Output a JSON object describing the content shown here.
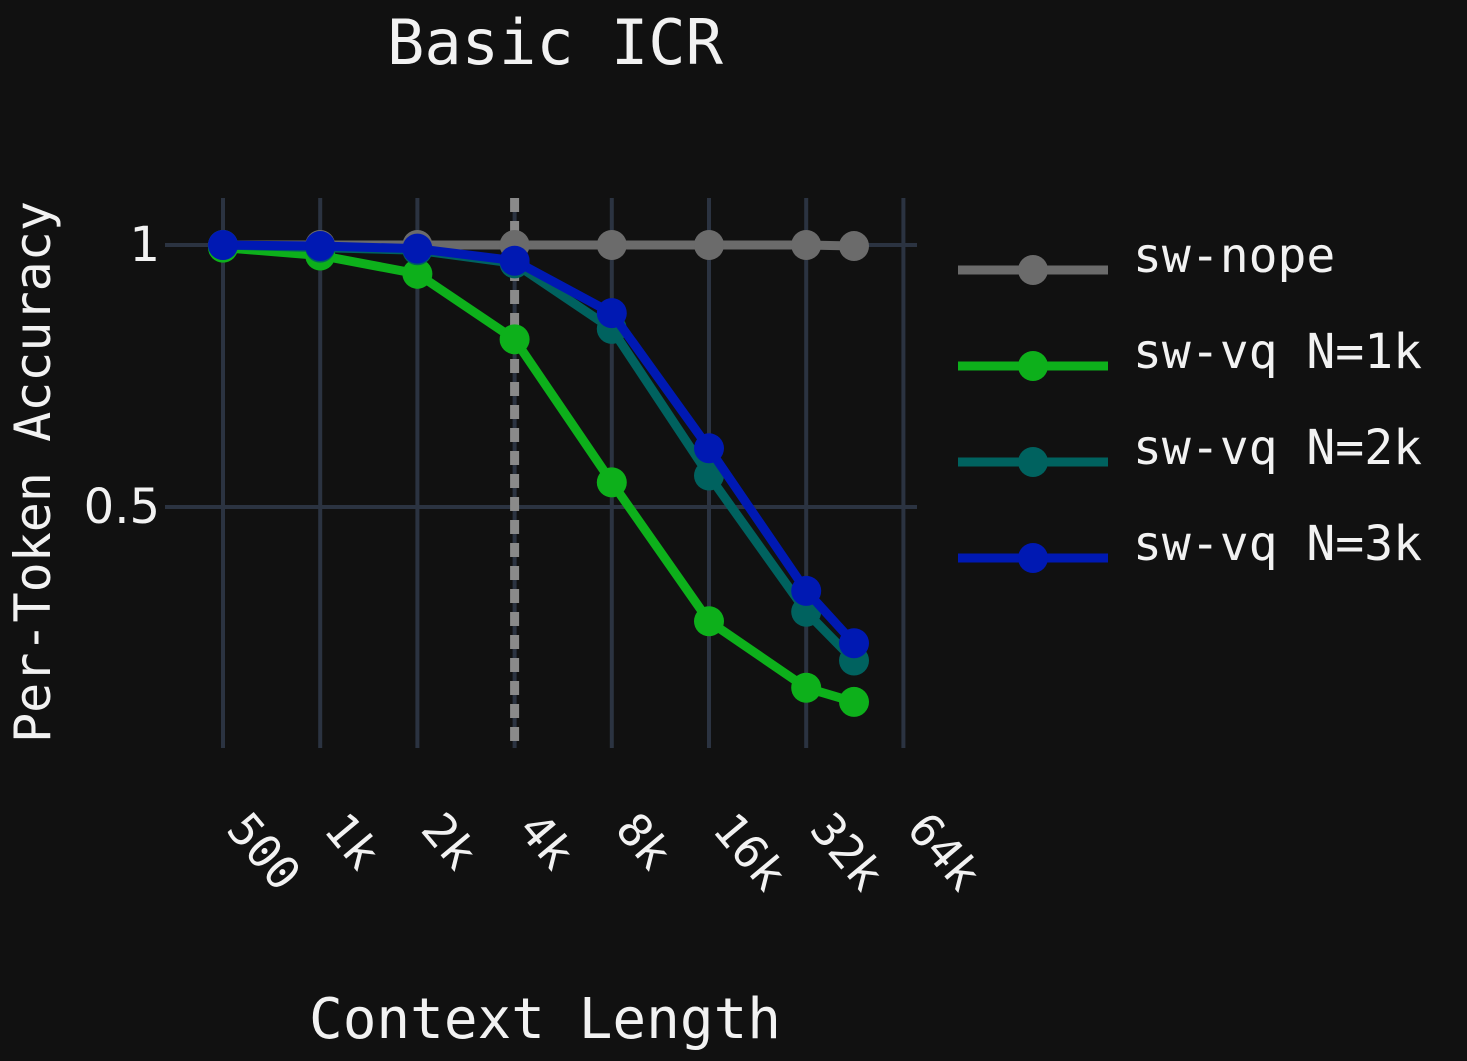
{
  "chart_data": {
    "type": "line",
    "title": "Basic ICR",
    "xlabel": "Context Length",
    "ylabel": "Per-Token Accuracy",
    "x_scale": "log2",
    "categories": [
      "500",
      "1k",
      "2k",
      "4k",
      "8k",
      "16k",
      "32k",
      "64k"
    ],
    "x": [
      500,
      1000,
      2000,
      4000,
      8000,
      16000,
      32000,
      64000
    ],
    "y_ticks": [
      {
        "value": 1,
        "label": "1"
      },
      {
        "value": 0.5,
        "label": "0.5"
      }
    ],
    "ylim": [
      0.07,
      1.09
    ],
    "reference_line": {
      "x": 4000,
      "style": "dashed",
      "color": "#8a8a8a"
    },
    "grid": true,
    "legend_position": "right",
    "series": [
      {
        "name": "sw-nope",
        "color": "#6b6b6b",
        "x": [
          500,
          1000,
          2000,
          4000,
          8000,
          16000,
          32000,
          45000
        ],
        "values": [
          1.0,
          1.0,
          1.0,
          1.0,
          1.0,
          1.0,
          1.0,
          0.998
        ]
      },
      {
        "name": "sw-vq N=1k",
        "color": "#0db01b",
        "x": [
          500,
          1000,
          2000,
          4000,
          8000,
          16000,
          32000,
          45000
        ],
        "values": [
          0.995,
          0.98,
          0.945,
          0.82,
          0.547,
          0.282,
          0.155,
          0.128
        ]
      },
      {
        "name": "sw-vq N=2k",
        "color": "#00625f",
        "x": [
          500,
          1000,
          2000,
          4000,
          8000,
          16000,
          32000,
          45000
        ],
        "values": [
          1.0,
          0.995,
          0.99,
          0.965,
          0.84,
          0.56,
          0.3,
          0.207
        ]
      },
      {
        "name": "sw-vq N=3k",
        "color": "#0019b3",
        "x": [
          500,
          1000,
          2000,
          4000,
          8000,
          16000,
          32000,
          45000
        ],
        "values": [
          1.0,
          0.998,
          0.993,
          0.97,
          0.87,
          0.612,
          0.34,
          0.24
        ]
      }
    ]
  },
  "colors": {
    "background": "#111111",
    "grid": "#2b3341",
    "text": "#f2f2f2"
  }
}
